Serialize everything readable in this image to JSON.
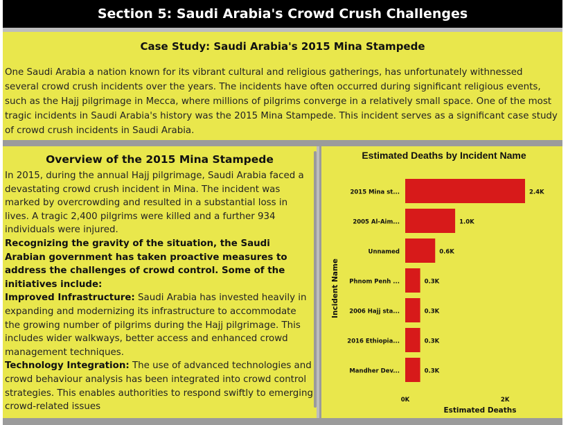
{
  "header": {
    "title": "Section 5: Saudi Arabia's Crowd Crush Challenges"
  },
  "case_study": {
    "title": "Case Study: Saudi Arabia's 2015 Mina Stampede",
    "body": "One Saudi Arabia a nation known for its vibrant cultural and religious gatherings, has unfortunately withnessed several crowd crush incidents over the years. The incidents have often occurred during significant religious events, such as the Hajj pilgrimage in Mecca, where millions of pilgrims converge in a relatively small space. One of the most tragic incidents in Saudi Arabia's history was the 2015 Mina Stampede. This incident serves as a significant case study of crowd crush incidents in Saudi Arabia."
  },
  "overview": {
    "title": "Overview of the 2015 Mina Stampede",
    "intro": "In 2015, during the annual Hajj pilgrimage, Saudi Arabia faced a devastating crowd crush incident in Mina. The incident was marked by overcrowding and resulted in a substantial loss in lives. A tragic 2,400 pilgrims were killed and a further 934 individuals were injured.",
    "bold_statement": "Recognizing the gravity of the situation, the Saudi Arabian government has taken proactive measures to address the challenges of crowd control. Some of the initiatives include:",
    "item1_label": "Improved Infrastructure:",
    "item1_text": " Saudi Arabia has invested heavily in expanding and modernizing its infrastructure to accommodate the growing number of pilgrims during the Hajj pilgrimage. This includes wider walkways, better access and enhanced crowd management techniques.",
    "item2_label": "Technology Integration:",
    "item2_text": " The use of advanced technologies and crowd behaviour analysis has been integrated into crowd control strategies. This enables authorities to respond swiftly to emerging crowd-related issues"
  },
  "chart_data": {
    "type": "bar",
    "orientation": "horizontal",
    "title": "Estimated Deaths by Incident Name",
    "xlabel": "Estimated Deaths",
    "ylabel": "Incident Name",
    "categories": [
      "2015 Mina st...",
      "2005 Al-Aim...",
      "Unnamed",
      "Phnom Penh ...",
      "2006 Hajj sta...",
      "2016 Ethiopia...",
      "Mandher Dev..."
    ],
    "values": [
      2400,
      1000,
      600,
      300,
      300,
      300,
      300
    ],
    "data_labels": [
      "2.4K",
      "1.0K",
      "0.6K",
      "0.3K",
      "0.3K",
      "0.3K",
      "0.3K"
    ],
    "xlim": [
      0,
      2400
    ],
    "x_ticks": [
      0,
      2000
    ],
    "x_tick_labels": [
      "0K",
      "2K"
    ],
    "bar_color": "#d71a1a",
    "grid": false
  },
  "colors": {
    "panel": "#e9e74c",
    "header_bg": "#000000",
    "bar": "#d71a1a"
  }
}
